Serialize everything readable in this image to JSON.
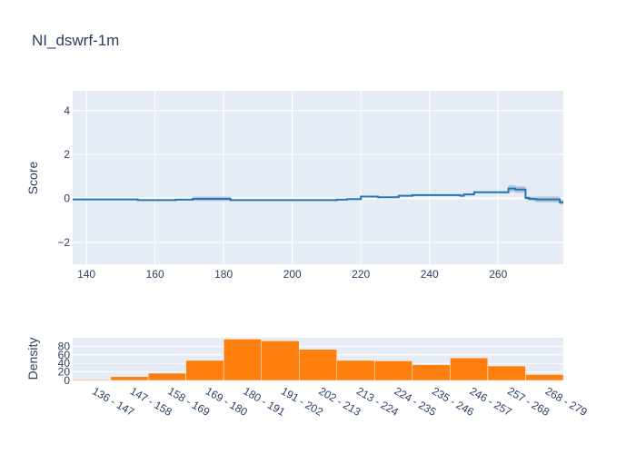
{
  "chart_data": [
    {
      "type": "line",
      "title": "NI_dswrf-1m",
      "xlabel": "",
      "ylabel": "Score",
      "xlim": [
        136,
        279
      ],
      "ylim": [
        -3,
        4.9
      ],
      "x_ticks": [
        140,
        160,
        180,
        200,
        220,
        240,
        260
      ],
      "y_ticks": [
        -2,
        0,
        2,
        4
      ],
      "grid": true,
      "colors": {
        "line": "#1f77b4",
        "band": "#a8b8cc",
        "plot_bg": "#e5ecf6"
      },
      "series": [
        {
          "steps": [
            {
              "x0": 136,
              "x1": 155,
              "y": -0.05,
              "lo": -0.07,
              "hi": -0.03
            },
            {
              "x0": 155,
              "x1": 166,
              "y": -0.08,
              "lo": -0.1,
              "hi": -0.06
            },
            {
              "x0": 166,
              "x1": 171,
              "y": -0.06,
              "lo": -0.08,
              "hi": -0.04
            },
            {
              "x0": 171,
              "x1": 182,
              "y": -0.02,
              "lo": -0.12,
              "hi": 0.08
            },
            {
              "x0": 182,
              "x1": 213,
              "y": -0.08,
              "lo": -0.1,
              "hi": -0.06
            },
            {
              "x0": 213,
              "x1": 216,
              "y": -0.06,
              "lo": -0.08,
              "hi": -0.04
            },
            {
              "x0": 216,
              "x1": 220,
              "y": -0.03,
              "lo": -0.05,
              "hi": -0.01
            },
            {
              "x0": 220,
              "x1": 225,
              "y": 0.08,
              "lo": 0.05,
              "hi": 0.11
            },
            {
              "x0": 225,
              "x1": 231,
              "y": 0.05,
              "lo": 0.03,
              "hi": 0.07
            },
            {
              "x0": 231,
              "x1": 235,
              "y": 0.12,
              "lo": 0.1,
              "hi": 0.14
            },
            {
              "x0": 235,
              "x1": 249,
              "y": 0.15,
              "lo": 0.13,
              "hi": 0.17
            },
            {
              "x0": 249,
              "x1": 250,
              "y": 0.12,
              "lo": 0.08,
              "hi": 0.16
            },
            {
              "x0": 250,
              "x1": 253,
              "y": 0.18,
              "lo": 0.14,
              "hi": 0.22
            },
            {
              "x0": 253,
              "x1": 263,
              "y": 0.28,
              "lo": 0.24,
              "hi": 0.32
            },
            {
              "x0": 263,
              "x1": 265,
              "y": 0.45,
              "lo": 0.3,
              "hi": 0.6
            },
            {
              "x0": 265,
              "x1": 268,
              "y": 0.4,
              "lo": 0.25,
              "hi": 0.55
            },
            {
              "x0": 268,
              "x1": 269,
              "y": 0.02,
              "lo": -0.06,
              "hi": 0.1
            },
            {
              "x0": 269,
              "x1": 271,
              "y": -0.02,
              "lo": -0.12,
              "hi": 0.08
            },
            {
              "x0": 271,
              "x1": 278,
              "y": -0.05,
              "lo": -0.18,
              "hi": 0.08
            },
            {
              "x0": 278,
              "x1": 279,
              "y": -0.18,
              "lo": -0.28,
              "hi": -0.08
            }
          ]
        }
      ]
    },
    {
      "type": "bar",
      "title": "",
      "xlabel": "",
      "ylabel": "Density",
      "ylim": [
        0,
        100
      ],
      "y_ticks": [
        0,
        20,
        40,
        60,
        80
      ],
      "colors": {
        "bar": "#ff7f0e",
        "plot_bg": "#e5ecf6"
      },
      "categories": [
        "136 - 147",
        "147 - 158",
        "158 - 169",
        "169 - 180",
        "180 - 191",
        "191 - 202",
        "202 - 213",
        "213 - 224",
        "224 - 235",
        "235 - 246",
        "246 - 257",
        "257 - 268",
        "268 - 279"
      ],
      "values": [
        2,
        9,
        17,
        47,
        97,
        93,
        73,
        47,
        46,
        37,
        53,
        34,
        14
      ]
    }
  ]
}
